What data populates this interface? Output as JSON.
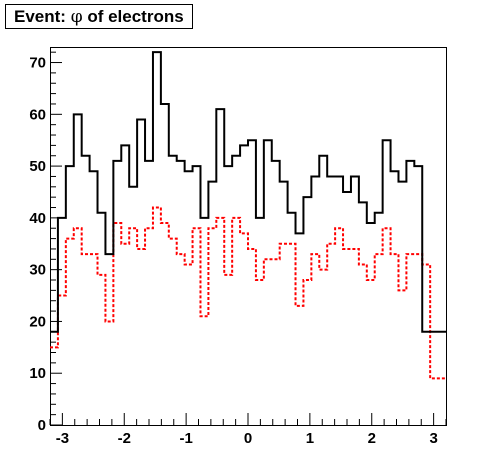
{
  "title": {
    "prefix": "Event: ",
    "symbol": "φ",
    "suffix": " of electrons"
  },
  "chart_data": {
    "type": "histogram",
    "title": "Event: φ of electrons",
    "xlabel": "",
    "ylabel": "",
    "xlim": [
      -3.2,
      3.2
    ],
    "ylim": [
      0,
      73
    ],
    "grid": false,
    "legend": "none",
    "x_ticks": [
      -3,
      -2,
      -1,
      0,
      1,
      2,
      3
    ],
    "x_tick_labels": [
      "-3",
      "-2",
      "-1",
      "0",
      "1",
      "2",
      "3"
    ],
    "y_ticks": [
      0,
      10,
      20,
      30,
      40,
      50,
      60,
      70
    ],
    "y_tick_labels": [
      "0",
      "10",
      "20",
      "30",
      "40",
      "50",
      "60",
      "70"
    ],
    "bin_edges_range": [
      -3.2,
      3.2
    ],
    "n_bins": 50,
    "series": [
      {
        "style": "solid",
        "color": "#000000",
        "values": [
          18,
          40,
          50,
          60,
          52,
          49,
          41,
          33,
          51,
          54,
          46,
          59,
          51,
          72,
          62,
          52,
          51,
          49,
          50,
          40,
          47,
          61,
          50,
          52,
          54,
          55,
          40,
          55,
          51,
          47,
          41,
          37,
          44,
          48,
          52,
          48,
          48,
          45,
          48,
          43,
          39,
          41,
          55,
          49,
          47,
          51,
          50,
          18,
          18,
          18
        ]
      },
      {
        "style": "dashed",
        "color": "#ff0000",
        "values": [
          15,
          25,
          36,
          38,
          33,
          33,
          29,
          20,
          39,
          35,
          38,
          34,
          38,
          42,
          39,
          36,
          33,
          31,
          38,
          21,
          38,
          40,
          29,
          40,
          37,
          34,
          28,
          32,
          32,
          35,
          35,
          23,
          28,
          33,
          30,
          35,
          38,
          34,
          34,
          31,
          28,
          33,
          38,
          33,
          26,
          33,
          33,
          31,
          9,
          9
        ]
      }
    ]
  }
}
